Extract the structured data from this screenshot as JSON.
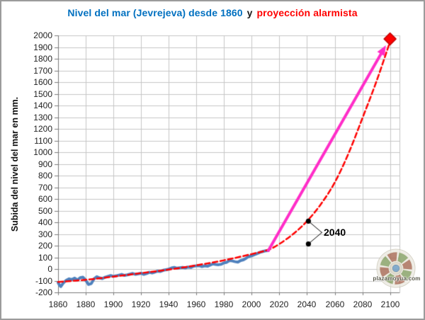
{
  "window": {
    "background": "#ffffff",
    "border_color": "#9b9b9b"
  },
  "title": {
    "part_blue": "Nivel del mar (Jevrejeva) desde 1860",
    "part_black": "y",
    "part_red": "proyección alarmista",
    "blue_color": "#0070C0",
    "black_color": "#1a1a1a",
    "red_color": "#FF0000"
  },
  "watermark": {
    "text": "plazamoyua.com"
  },
  "chart_data": {
    "type": "line",
    "title": "Nivel del mar (Jevrejeva) desde 1860 y proyección alarmista",
    "xlabel": "",
    "ylabel": "Subida del nivel del mar en mm.",
    "xlim": [
      1860,
      2100
    ],
    "ylim": [
      -200,
      2000
    ],
    "x_tick_step": 20,
    "y_tick_step": 100,
    "x_tick_labels": [
      "1860",
      "1880",
      "1900",
      "1920",
      "1940",
      "1960",
      "1980",
      "2000",
      "2020",
      "2040",
      "2060",
      "2080",
      "2100"
    ],
    "y_tick_labels": [
      "2000",
      "1900",
      "1800",
      "1700",
      "1600",
      "1500",
      "1400",
      "1300",
      "1200",
      "1100",
      "1000",
      "900",
      "800",
      "700",
      "600",
      "500",
      "400",
      "300",
      "200",
      "100",
      "0",
      "-100",
      "-200"
    ],
    "grid": true,
    "grid_color": "#c6c6c6",
    "axis_color": "#7a7a7a",
    "legend": "none",
    "series": [
      {
        "name": "observed-sea-level-jevrejeva",
        "color": "#4F81BD",
        "style": "solid",
        "width": 4,
        "points": [
          [
            1860,
            -115
          ],
          [
            1861,
            -138
          ],
          [
            1862,
            -150
          ],
          [
            1863,
            -132
          ],
          [
            1864,
            -117
          ],
          [
            1866,
            -96
          ],
          [
            1868,
            -84
          ],
          [
            1870,
            -90
          ],
          [
            1872,
            -78
          ],
          [
            1874,
            -94
          ],
          [
            1876,
            -74
          ],
          [
            1878,
            -70
          ],
          [
            1880,
            -96
          ],
          [
            1882,
            -132
          ],
          [
            1884,
            -125
          ],
          [
            1886,
            -84
          ],
          [
            1888,
            -66
          ],
          [
            1890,
            -76
          ],
          [
            1892,
            -82
          ],
          [
            1894,
            -70
          ],
          [
            1896,
            -63
          ],
          [
            1898,
            -56
          ],
          [
            1900,
            -63
          ],
          [
            1902,
            -58
          ],
          [
            1904,
            -52
          ],
          [
            1906,
            -46
          ],
          [
            1908,
            -55
          ],
          [
            1910,
            -50
          ],
          [
            1912,
            -44
          ],
          [
            1914,
            -38
          ],
          [
            1916,
            -46
          ],
          [
            1918,
            -41
          ],
          [
            1920,
            -36
          ],
          [
            1922,
            -46
          ],
          [
            1924,
            -39
          ],
          [
            1926,
            -28
          ],
          [
            1928,
            -34
          ],
          [
            1930,
            -26
          ],
          [
            1932,
            -18
          ],
          [
            1934,
            -21
          ],
          [
            1936,
            -11
          ],
          [
            1938,
            -6
          ],
          [
            1940,
            -2
          ],
          [
            1942,
            9
          ],
          [
            1944,
            14
          ],
          [
            1946,
            7
          ],
          [
            1948,
            11
          ],
          [
            1950,
            14
          ],
          [
            1952,
            9
          ],
          [
            1954,
            17
          ],
          [
            1956,
            13
          ],
          [
            1958,
            24
          ],
          [
            1960,
            27
          ],
          [
            1962,
            29
          ],
          [
            1964,
            21
          ],
          [
            1966,
            27
          ],
          [
            1968,
            24
          ],
          [
            1970,
            34
          ],
          [
            1972,
            44
          ],
          [
            1974,
            39
          ],
          [
            1976,
            37
          ],
          [
            1978,
            41
          ],
          [
            1980,
            53
          ],
          [
            1982,
            58
          ],
          [
            1984,
            73
          ],
          [
            1986,
            69
          ],
          [
            1988,
            63
          ],
          [
            1990,
            59
          ],
          [
            1992,
            73
          ],
          [
            1994,
            79
          ],
          [
            1996,
            93
          ],
          [
            1998,
            108
          ],
          [
            2000,
            113
          ],
          [
            2002,
            123
          ],
          [
            2004,
            133
          ],
          [
            2006,
            143
          ],
          [
            2008,
            150
          ],
          [
            2010,
            156
          ],
          [
            2012,
            158
          ]
        ]
      },
      {
        "name": "alarmist-exponential-projection",
        "color": "#FF0000",
        "style": "dashed",
        "width": 2.5,
        "points": [
          [
            1860,
            -110
          ],
          [
            1880,
            -92
          ],
          [
            1900,
            -65
          ],
          [
            1920,
            -35
          ],
          [
            1940,
            -5
          ],
          [
            1960,
            32
          ],
          [
            1980,
            75
          ],
          [
            2000,
            128
          ],
          [
            2012,
            165
          ],
          [
            2020,
            215
          ],
          [
            2030,
            300
          ],
          [
            2040,
            410
          ],
          [
            2050,
            555
          ],
          [
            2060,
            740
          ],
          [
            2070,
            990
          ],
          [
            2080,
            1290
          ],
          [
            2090,
            1600
          ],
          [
            2100,
            1945
          ]
        ]
      },
      {
        "name": "projection-arrow-to-2100",
        "color": "#FF2DC8",
        "style": "arrow",
        "width": 4,
        "points": [
          [
            2012,
            158
          ],
          [
            2097,
            1915
          ]
        ]
      }
    ],
    "markers": [
      {
        "name": "alarmist-endpoint-2100",
        "shape": "diamond",
        "color": "#FF0000",
        "edge_color": "#C00000",
        "year": 2100,
        "mm": 1970,
        "size": 17
      }
    ],
    "annotation": {
      "label": "2040",
      "dot_color": "#000000",
      "dots": [
        {
          "year": 2041,
          "mm": 410
        },
        {
          "year": 2041,
          "mm": 215
        }
      ]
    }
  }
}
